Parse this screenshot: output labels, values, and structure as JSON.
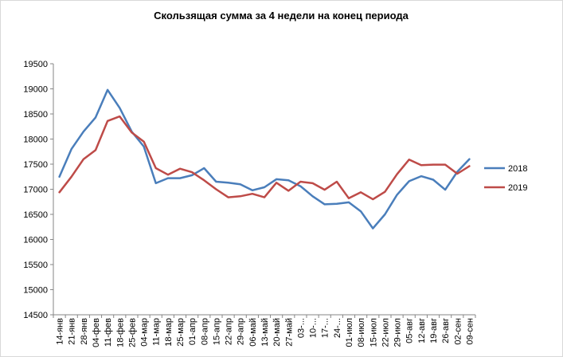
{
  "chart_data": {
    "type": "line",
    "title": "Скользящая сумма за 4 недели на конец периода",
    "xlabel": "",
    "ylabel": "",
    "ylim": [
      14500,
      19500
    ],
    "yticks": [
      14500,
      15000,
      15500,
      16000,
      16500,
      17000,
      17500,
      18000,
      18500,
      19000,
      19500
    ],
    "grid": false,
    "legend": "right",
    "categories": [
      "14-янв",
      "21-янв",
      "28-янв",
      "04-фев",
      "11-фев",
      "18-фев",
      "25-фев",
      "04-мар",
      "11-мар",
      "18-мар",
      "25-мар",
      "01-апр",
      "08-апр",
      "15-апр",
      "22-апр",
      "29-апр",
      "06-май",
      "13-май",
      "20-май",
      "27-май",
      "03-...",
      "10-...",
      "17-...",
      "24-...",
      "01-июл",
      "08-июл",
      "15-июл",
      "22-июл",
      "29-июл",
      "05-авг",
      "12-авг",
      "19-авг",
      "26-авг",
      "02-сен",
      "09-сен"
    ],
    "series": [
      {
        "name": "2018",
        "color": "#4a7ebb",
        "values": [
          17250,
          17800,
          18150,
          18430,
          18980,
          18620,
          18150,
          17850,
          17120,
          17220,
          17220,
          17280,
          17420,
          17150,
          17130,
          17100,
          16980,
          17040,
          17200,
          17180,
          17060,
          16860,
          16700,
          16710,
          16740,
          16560,
          16220,
          16500,
          16890,
          17160,
          17260,
          17190,
          16990,
          17350,
          17600
        ]
      },
      {
        "name": "2019",
        "color": "#be4b48",
        "values": [
          16940,
          17250,
          17600,
          17780,
          18360,
          18450,
          18130,
          17950,
          17420,
          17290,
          17410,
          17340,
          17180,
          17000,
          16840,
          16860,
          16910,
          16840,
          17130,
          16970,
          17150,
          17120,
          16990,
          17150,
          16820,
          16940,
          16800,
          16950,
          17300,
          17590,
          17480,
          17490,
          17490,
          17310,
          17460
        ]
      }
    ]
  }
}
